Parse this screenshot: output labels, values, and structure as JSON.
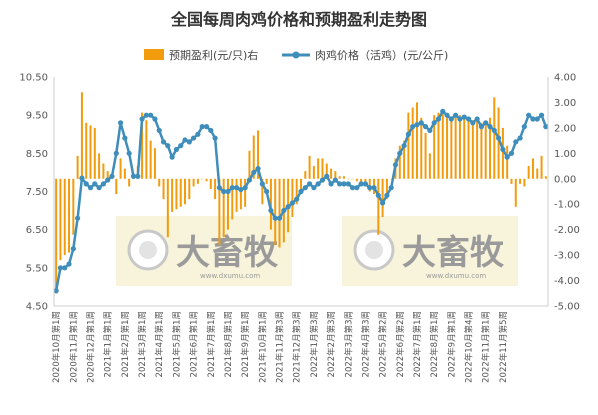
{
  "chart_data": {
    "type": "bar+line",
    "title": "全国每周肉鸡价格和预期盈利走势图",
    "legend": [
      {
        "name": "预期盈利(元/只)右",
        "kind": "bar",
        "color": "#F29B0C"
      },
      {
        "name": "肉鸡价格（活鸡）(元/公斤)",
        "kind": "line",
        "color": "#3E8DBA"
      }
    ],
    "legend_position": "top-center",
    "y_left": {
      "min": 4.5,
      "max": 10.5,
      "ticks": [
        "4.50",
        "5.50",
        "6.50",
        "7.50",
        "8.50",
        "9.50",
        "10.50"
      ]
    },
    "y_right": {
      "min": -5,
      "max": 4,
      "ticks": [
        "-5.00",
        "-4.00",
        "-3.00",
        "-2.00",
        "-1.00",
        "0.00",
        "1.00",
        "2.00",
        "3.00",
        "4.00"
      ]
    },
    "x_labels": [
      "2020年10月第1周",
      "2020年11月第1周",
      "2020年12月第1周",
      "2021年1月第1周",
      "2021年2月第1周",
      "2021年3月第1周",
      "2021年4月第1周",
      "2021年5月第1周",
      "2021年6月第1周",
      "2021年7月第1周",
      "2021年8月第1周",
      "2021年9月第1周",
      "2021年10月第1周",
      "2021年11月第3周",
      "2021年12月第3周",
      "2022年1月第3周",
      "2022年2月第3周",
      "2022年3月第3周",
      "2022年4月第3周",
      "2022年5月第2周",
      "2022年6月第2周",
      "2022年7月第1周",
      "2022年8月第1周",
      "2022年9月第1周",
      "2022年10月第4周",
      "2022年11月第1周",
      "2022年11月第5周"
    ],
    "x_label_every": 4,
    "grid": false,
    "series": [
      {
        "name": "肉鸡价格（活鸡）(元/公斤)",
        "axis": "left",
        "values": [
          4.9,
          5.5,
          5.5,
          5.6,
          6.0,
          6.8,
          7.85,
          7.7,
          7.6,
          7.7,
          7.6,
          7.7,
          7.8,
          7.9,
          8.5,
          9.3,
          8.9,
          8.5,
          7.9,
          7.9,
          9.4,
          9.5,
          9.5,
          9.4,
          9.1,
          8.8,
          8.7,
          8.4,
          8.6,
          8.7,
          8.85,
          8.8,
          8.9,
          9.0,
          9.2,
          9.2,
          9.1,
          8.9,
          7.6,
          7.5,
          7.5,
          7.6,
          7.6,
          7.55,
          7.6,
          7.8,
          8.0,
          8.1,
          7.7,
          7.5,
          7.0,
          6.8,
          6.8,
          7.0,
          7.1,
          7.2,
          7.3,
          7.5,
          7.6,
          7.7,
          7.6,
          7.7,
          7.8,
          7.9,
          7.7,
          7.8,
          7.7,
          7.7,
          7.7,
          7.6,
          7.6,
          7.7,
          7.7,
          7.6,
          7.6,
          7.4,
          7.2,
          7.4,
          7.6,
          8.2,
          8.5,
          8.7,
          9.0,
          9.2,
          9.25,
          9.3,
          9.2,
          9.1,
          9.3,
          9.4,
          9.6,
          9.5,
          9.4,
          9.5,
          9.4,
          9.45,
          9.4,
          9.3,
          9.4,
          9.2,
          9.3,
          9.2,
          9.1,
          8.9,
          8.6,
          8.4,
          8.5,
          8.8,
          8.9,
          9.2,
          9.5,
          9.4,
          9.4,
          9.5,
          9.2
        ]
      },
      {
        "name": "预期盈利(元/只)右",
        "axis": "right",
        "values": [
          -4.5,
          -3.2,
          -3.0,
          -2.9,
          -2.2,
          0.9,
          3.4,
          2.2,
          2.1,
          2.0,
          1.0,
          0.6,
          0.3,
          0.1,
          -0.6,
          0.8,
          0.4,
          -0.3,
          0.2,
          0.5,
          2.6,
          2.3,
          1.5,
          1.2,
          -0.3,
          -0.8,
          -2.3,
          -1.3,
          -1.2,
          -1.1,
          -1.0,
          -0.8,
          -0.3,
          -0.2,
          0.0,
          -0.1,
          -0.4,
          -0.8,
          -2.6,
          -2.3,
          -2.0,
          -1.6,
          -1.3,
          -1.2,
          -1.1,
          1.1,
          1.7,
          1.9,
          -1.0,
          -0.2,
          -2.0,
          -2.6,
          -2.7,
          -2.5,
          -2.1,
          -1.5,
          -1.0,
          -0.6,
          0.3,
          0.9,
          0.5,
          0.8,
          0.8,
          0.6,
          0.4,
          0.3,
          0.1,
          0.1,
          0.0,
          0.0,
          -0.1,
          -0.2,
          -0.3,
          -0.5,
          -0.6,
          -2.2,
          -1.5,
          -0.8,
          0.0,
          0.8,
          1.3,
          1.5,
          2.6,
          2.8,
          3.0,
          2.4,
          1.8,
          1.0,
          2.5,
          2.6,
          2.6,
          2.5,
          2.4,
          2.4,
          2.5,
          2.5,
          2.4,
          2.3,
          2.3,
          2.2,
          2.1,
          2.4,
          3.2,
          2.8,
          2.0,
          1.3,
          -0.2,
          -1.1,
          -0.2,
          -0.3,
          0.5,
          0.8,
          0.4,
          0.9,
          0.1
        ]
      }
    ]
  },
  "watermark": {
    "text": "大畜牧",
    "url": "www.dxumu.com"
  }
}
